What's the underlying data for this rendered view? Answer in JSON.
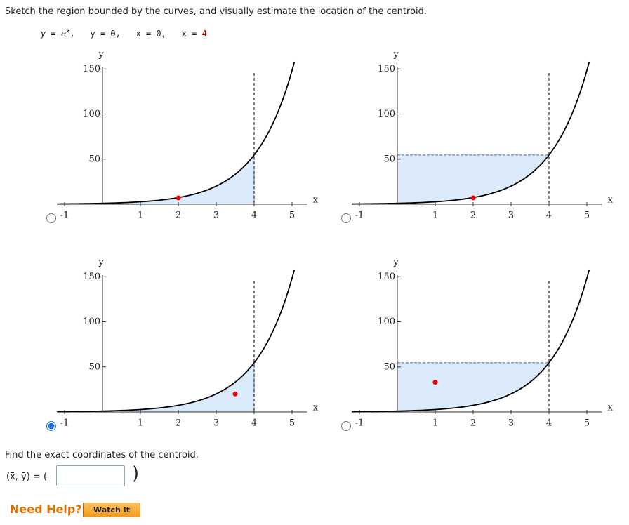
{
  "question": "Sketch the region bounded by the curves, and visually estimate the location of the centroid.",
  "equation_parts": [
    "y = e",
    "x",
    ",",
    "y = 0,",
    "x = 0,",
    "x = ",
    "4"
  ],
  "graph": {
    "x_label": "x",
    "y_label": "y",
    "xticks": [
      -1,
      1,
      2,
      3,
      4,
      5
    ],
    "yticks": [
      50,
      100,
      150
    ],
    "xlim": [
      -1.2,
      5.4
    ],
    "ylim": [
      0,
      158
    ],
    "bound_x": 4
  },
  "options": [
    {
      "region": "below",
      "centroid": [
        2,
        7
      ],
      "selected": false
    },
    {
      "region": "left",
      "centroid": [
        2,
        7
      ],
      "selected": false
    },
    {
      "region": "below",
      "centroid": [
        3.5,
        20
      ],
      "selected": true
    },
    {
      "region": "left",
      "centroid": [
        1,
        33
      ],
      "selected": false
    }
  ],
  "prompt": "Find the exact coordinates of the centroid.",
  "answer_label": "(x̄, ȳ) = (",
  "answer_close": ")",
  "help_label": "Need Help?",
  "watch_button": "Watch It"
}
